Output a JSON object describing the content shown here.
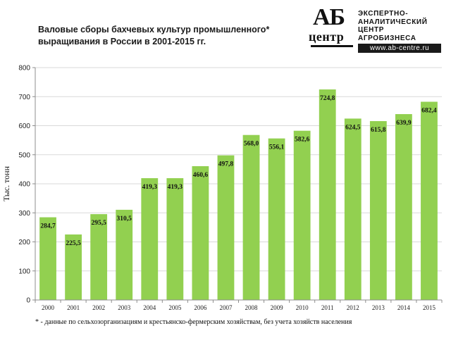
{
  "header": {
    "title_line1": "Валовые сборы бахчевых культур промышленного*",
    "title_line2": "выращивания в России в 2001-2015 гг."
  },
  "logo": {
    "letters": "АБ",
    "word": "центр",
    "text_line1": "ЭКСПЕРТНО-",
    "text_line2": "АНАЛИТИЧЕСКИЙ",
    "text_line3": "ЦЕНТР",
    "text_line4": "АГРОБИЗНЕСА",
    "url": "www.ab-centre.ru"
  },
  "footnote": "* - данные по сельхозорганизациям и крестьянско-фермерским  хозяйствам, без учета хозяйств населения",
  "colors": {
    "bar": "#92d050",
    "grid": "#d9d9d9",
    "axis": "#8c8c8c"
  },
  "chart_data": {
    "type": "bar",
    "title": "Валовые сборы бахчевых культур промышленного* выращивания в России в 2001-2015 гг.",
    "ylabel": "Тыс. тонн",
    "xlabel": "",
    "ylim": [
      0,
      800
    ],
    "yticks": [
      "0",
      "100",
      "200",
      "300",
      "400",
      "500",
      "600",
      "700",
      "800"
    ],
    "grid": true,
    "legend": "none",
    "categories": [
      "2000",
      "2001",
      "2002",
      "2003",
      "2004",
      "2005",
      "2006",
      "2007",
      "2008",
      "2009",
      "2010",
      "2011",
      "2012",
      "2013",
      "2014",
      "2015"
    ],
    "values": [
      284.7,
      225.5,
      295.5,
      310.5,
      419.3,
      419.3,
      460.6,
      497.8,
      568.0,
      556.1,
      582.6,
      724.8,
      624.5,
      615.8,
      639.9,
      682.4
    ],
    "labels": [
      "284,7",
      "225,5",
      "295,5",
      "310,5",
      "419,3",
      "419,3",
      "460,6",
      "497,8",
      "568,0",
      "556,1",
      "582,6",
      "724,8",
      "624,5",
      "615,8",
      "639,9",
      "682,4"
    ]
  }
}
